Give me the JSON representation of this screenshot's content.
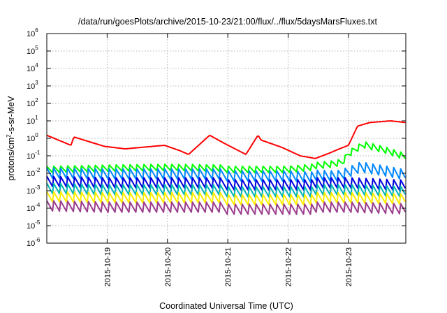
{
  "chart_data": {
    "type": "line",
    "title": "/data/run/goesPlots/archive/2015-10-23/21:00/flux/../flux/5daysMarsFluxes.txt",
    "xlabel": "Coordinated Universal Time (UTC)",
    "ylabel": "protons/cm2-s-sr-MeV",
    "ylabel_base": "protons/cm",
    "ylabel_sup": "2",
    "ylabel_rest": "-s-sr-MeV",
    "yscale": "log",
    "ylim_exponent": [
      -6,
      6
    ],
    "y_ticks": [
      {
        "base": "10",
        "exp": "6"
      },
      {
        "base": "10",
        "exp": "5"
      },
      {
        "base": "10",
        "exp": "4"
      },
      {
        "base": "10",
        "exp": "3"
      },
      {
        "base": "10",
        "exp": "2"
      },
      {
        "base": "10",
        "exp": "1"
      },
      {
        "base": "10",
        "exp": "0"
      },
      {
        "base": "10",
        "exp": "-1"
      },
      {
        "base": "10",
        "exp": "-2"
      },
      {
        "base": "10",
        "exp": "-3"
      },
      {
        "base": "10",
        "exp": "-4"
      },
      {
        "base": "10",
        "exp": "-5"
      },
      {
        "base": "10",
        "exp": "-6"
      }
    ],
    "x_range_days": [
      0,
      5.95
    ],
    "x_ticks": [
      {
        "label": "2015-10-19",
        "day": 1
      },
      {
        "label": "2015-10-20",
        "day": 2
      },
      {
        "label": "2015-10-21",
        "day": 3
      },
      {
        "label": "2015-10-22",
        "day": 4
      },
      {
        "label": "2015-10-23",
        "day": 5
      }
    ],
    "grid": true,
    "series": [
      {
        "color": "#ff0000",
        "x": [
          0,
          0.4,
          0.45,
          0.95,
          1.3,
          1.95,
          2.2,
          2.35,
          2.7,
          2.95,
          3.3,
          3.5,
          3.55,
          3.9,
          4.2,
          4.45,
          4.7,
          4.85,
          5.0,
          5.15,
          5.35,
          5.7,
          5.95
        ],
        "y": [
          1.5,
          0.4,
          1.2,
          0.35,
          0.25,
          0.4,
          0.2,
          0.12,
          1.5,
          0.5,
          0.12,
          1.5,
          0.8,
          0.3,
          0.1,
          0.07,
          0.15,
          0.25,
          0.4,
          5,
          8,
          10,
          8
        ]
      },
      {
        "color": "#00ff00",
        "x": [
          0,
          1.0,
          2.0,
          3.0,
          4.0,
          4.7,
          4.9,
          5.0,
          5.1,
          5.25,
          5.6,
          5.95
        ],
        "y": [
          0.015,
          0.018,
          0.02,
          0.018,
          0.018,
          0.03,
          0.04,
          0.12,
          0.2,
          0.4,
          0.2,
          0.08
        ]
      },
      {
        "color": "#0088ff",
        "x": [
          0,
          1.0,
          2.0,
          3.0,
          4.0,
          4.8,
          5.0,
          5.2,
          5.6,
          5.95
        ],
        "y": [
          0.009,
          0.008,
          0.008,
          0.008,
          0.008,
          0.006,
          0.01,
          0.02,
          0.012,
          0.007
        ]
      },
      {
        "color": "#0000dd",
        "x": [
          0,
          1.0,
          2.0,
          3.0,
          4.0,
          5.0,
          5.95
        ],
        "y": [
          0.003,
          0.0025,
          0.0025,
          0.0025,
          0.0025,
          0.0025,
          0.0018
        ]
      },
      {
        "color": "#00b4b4",
        "x": [
          0,
          1.0,
          2.0,
          3.0,
          4.0,
          5.0,
          5.95
        ],
        "y": [
          0.0012,
          0.001,
          0.001,
          0.001,
          0.001,
          0.001,
          0.0008
        ]
      },
      {
        "color": "#ffee00",
        "x": [
          0,
          1.0,
          2.0,
          3.0,
          4.0,
          5.0,
          5.95
        ],
        "y": [
          0.0004,
          0.00035,
          0.00035,
          0.00035,
          0.00035,
          0.00035,
          0.0003
        ]
      },
      {
        "color": "#9b3c8c",
        "x": [
          0,
          1.0,
          2.0,
          3.0,
          4.0,
          5.0,
          5.95
        ],
        "y": [
          0.00012,
          0.0001,
          0.0001,
          0.0001,
          0.0001,
          0.0001,
          8e-05
        ]
      }
    ]
  }
}
